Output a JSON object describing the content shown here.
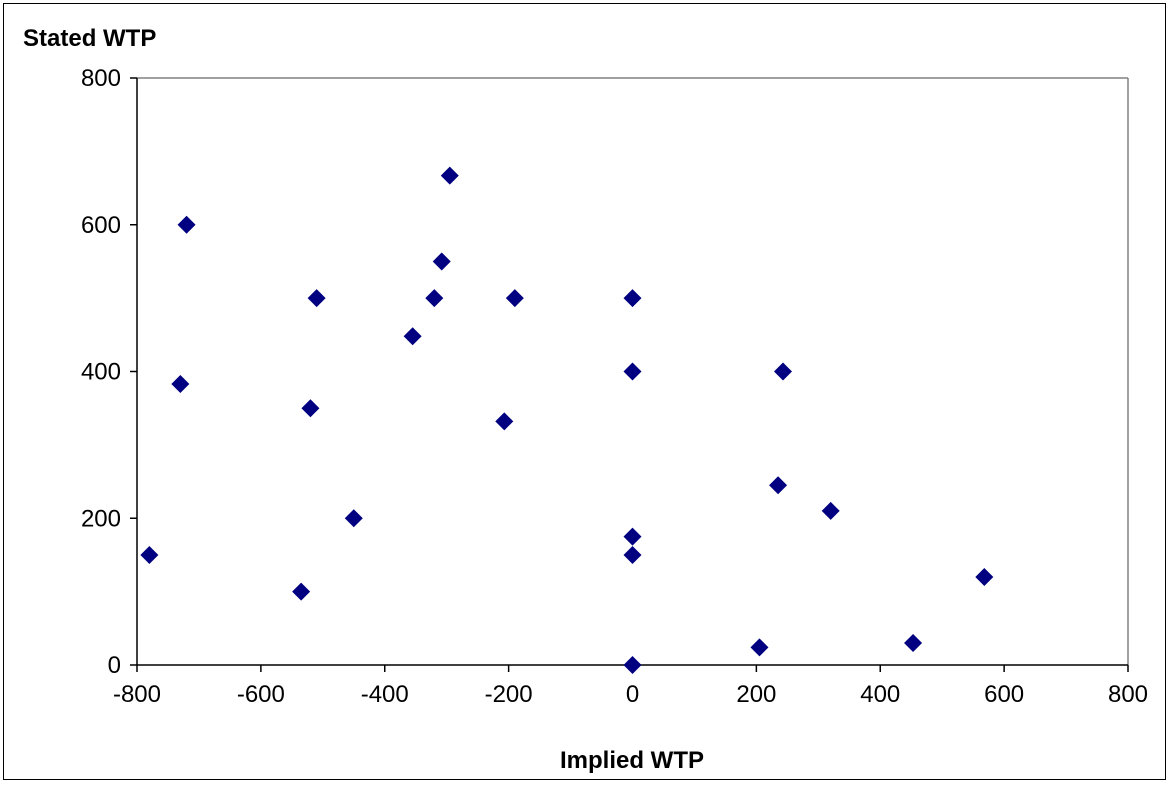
{
  "chart_data": {
    "type": "scatter",
    "title": "",
    "xlabel": "Implied WTP",
    "ylabel": "Stated WTP",
    "xlim": [
      -800,
      800
    ],
    "ylim": [
      0,
      800
    ],
    "x_ticks": [
      -800,
      -600,
      -400,
      -200,
      0,
      200,
      400,
      600,
      800
    ],
    "y_ticks": [
      0,
      200,
      400,
      600,
      800
    ],
    "x_tick_labels": [
      "-800",
      "-600",
      "-400",
      "-200",
      "0",
      "200",
      "400",
      "600",
      "800"
    ],
    "y_tick_labels": [
      "0",
      "200",
      "400",
      "600",
      "800"
    ],
    "grid": false,
    "legend": "none",
    "marker": "diamond",
    "marker_color": "#000080",
    "series": [
      {
        "points": [
          {
            "x": -780,
            "y": 150
          },
          {
            "x": -730,
            "y": 383
          },
          {
            "x": -720,
            "y": 600
          },
          {
            "x": -535,
            "y": 100
          },
          {
            "x": -520,
            "y": 350
          },
          {
            "x": -510,
            "y": 500
          },
          {
            "x": -450,
            "y": 200
          },
          {
            "x": -355,
            "y": 448
          },
          {
            "x": -320,
            "y": 500
          },
          {
            "x": -308,
            "y": 550
          },
          {
            "x": -295,
            "y": 667
          },
          {
            "x": -207,
            "y": 332
          },
          {
            "x": -190,
            "y": 500
          },
          {
            "x": 0,
            "y": 500
          },
          {
            "x": 0,
            "y": 400
          },
          {
            "x": 0,
            "y": 175
          },
          {
            "x": 0,
            "y": 150
          },
          {
            "x": 0,
            "y": 0
          },
          {
            "x": 205,
            "y": 24
          },
          {
            "x": 235,
            "y": 245
          },
          {
            "x": 243,
            "y": 400
          },
          {
            "x": 320,
            "y": 210
          },
          {
            "x": 453,
            "y": 30
          },
          {
            "x": 568,
            "y": 120
          }
        ]
      }
    ]
  }
}
